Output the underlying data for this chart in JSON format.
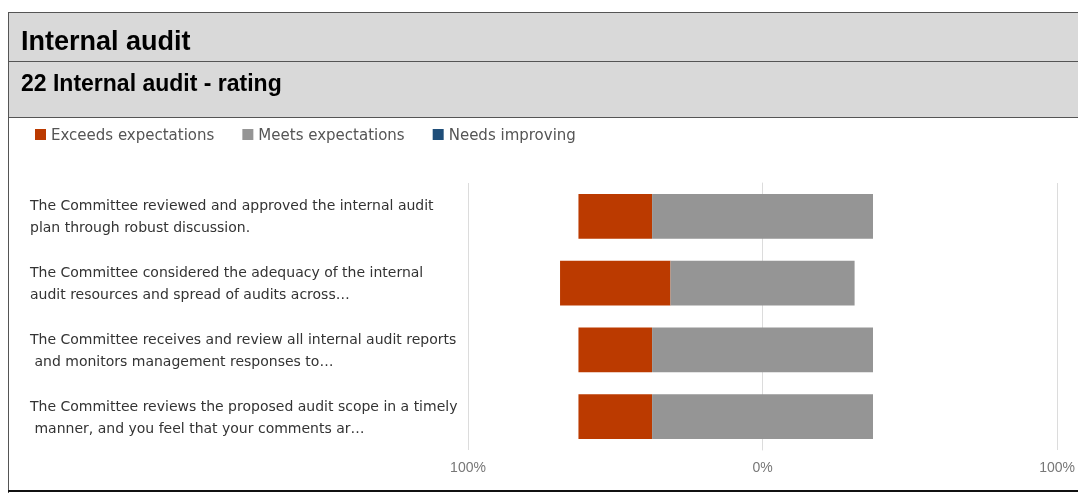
{
  "chart_data": {
    "type": "bar",
    "orientation": "horizontal",
    "title": "Internal audit",
    "subtitle": "22 Internal audit - rating",
    "categories": [
      "The Committee reviewed and approved the internal audit plan through robust discussion.",
      "The Committee considered the adequacy of the internal audit resources and spread of audits across…",
      "The Committee receives and review all internal audit reports and monitors management responses to…",
      "The Committee reviews the proposed audit scope in a timely manner, and you feel that your comments ar…"
    ],
    "series": [
      {
        "name": "Exceeds expectations",
        "color": "#bb3a00",
        "values": [
          25,
          37.5,
          25,
          25
        ],
        "base": [
          -62.5,
          -68.75,
          -62.5,
          -62.5
        ]
      },
      {
        "name": "Meets expectations",
        "color": "#959595",
        "values": [
          75,
          62.5,
          75,
          75
        ],
        "base": [
          -37.5,
          -31.25,
          -37.5,
          -37.5
        ]
      },
      {
        "name": "Needs improving",
        "color": "#1f4e79",
        "values": [
          0,
          0,
          0,
          0
        ]
      }
    ],
    "xlim": [
      -100,
      100
    ],
    "xticks": [
      {
        "value": -100,
        "label": "100%"
      },
      {
        "value": 0,
        "label": "0%"
      },
      {
        "value": 100,
        "label": "100%"
      }
    ],
    "grid": "x",
    "legend": "top left"
  }
}
